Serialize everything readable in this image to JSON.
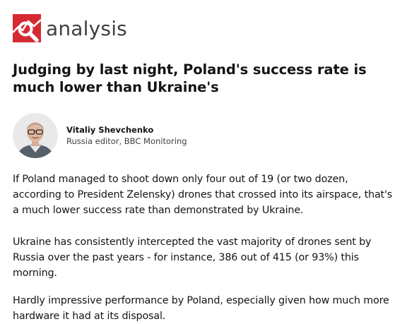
{
  "brand": {
    "label": "analysis",
    "logo_icon": "magnifier-chart-icon",
    "logo_color": "#d52a33"
  },
  "headline": "Judging by last night, Poland's success rate is much lower than Ukraine's",
  "author": {
    "name": "Vitaliy Shevchenko",
    "role": "Russia editor, BBC Monitoring"
  },
  "paragraphs": [
    "If Poland managed to shoot down only four out of 19 (or two dozen, according to President Zelensky) drones that crossed into its airspace, that's a much lower success rate than demonstrated by Ukraine.",
    "Ukraine has consistently intercepted the vast majority of drones sent by Russia over the past years - for instance, 386 out of 415 (or 93%) this morning.",
    "Hardly impressive performance by Poland, especially given how much more hardware it had at its disposal."
  ]
}
